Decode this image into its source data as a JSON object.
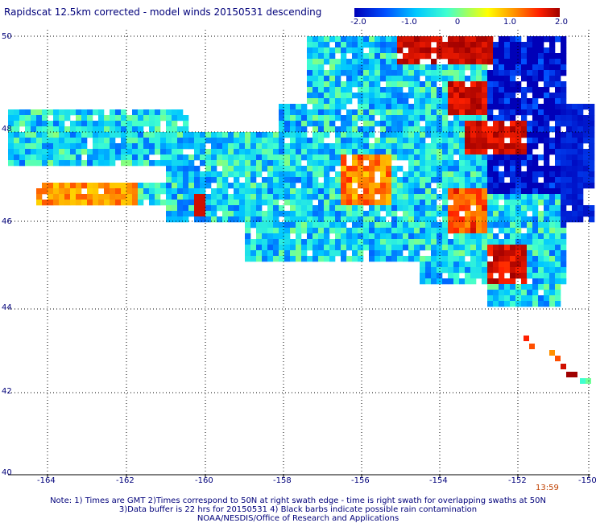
{
  "title": "Rapidscat 12.5km corrected - model winds 20150531 descending",
  "colorbar": {
    "labels": [
      "-2.0",
      "-1.0",
      "0",
      "1.0",
      "2.0"
    ],
    "range": [
      -2.0,
      2.0
    ]
  },
  "axes": {
    "lon_ticks": [
      "-164",
      "-162",
      "-160",
      "-158",
      "-156",
      "-154",
      "-152",
      "-150"
    ],
    "lat_ticks": [
      "50",
      "48",
      "46",
      "44",
      "42",
      "40"
    ]
  },
  "time_stamp": "13:59",
  "notes": [
    "Note: 1) Times are GMT 2)Times correspond to 50N at right swath edge - time is right swath for overlapping swaths at 50N",
    "3)Data buffer is 22 hrs for 20150531 4) Black barbs indicate possible rain contamination",
    "NOAA/NESDIS/Office of Research and Applications"
  ],
  "colors": {
    "text": "#00007a",
    "grid": "#000000",
    "stamp": "#c04000"
  }
}
